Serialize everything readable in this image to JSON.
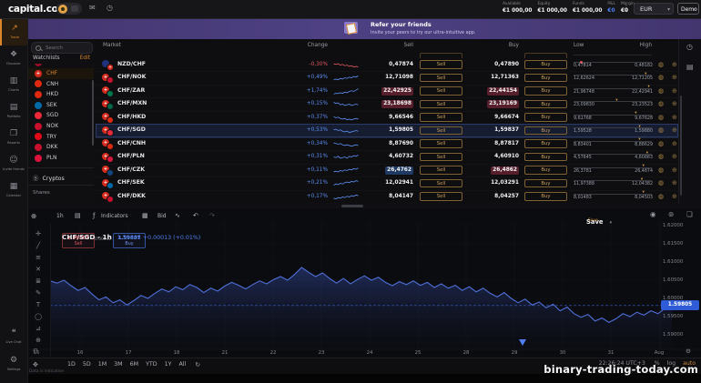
{
  "colors": {
    "accent_orange": "#d9862c",
    "positive_blue": "#5b8def",
    "negative_red": "#e0575d",
    "gold_button": "#caa15c",
    "banner_purple": "#4e4184",
    "chart_line": "#4f6fd8",
    "price_badge_blue": "#2f5cd6",
    "highlight_red_bg": "#571f2b",
    "highlight_blue_bg": "#1f3a63"
  },
  "icon_glyphs": {
    "mail": "✉",
    "history": "◷",
    "dots": "⋮",
    "caret": "▾",
    "clock": "◷",
    "news": "▤",
    "add": "⊕",
    "chart_type": "▤",
    "fx": "ƒ",
    "layout": "▦",
    "line_style": "∿",
    "undo": "↶",
    "redo": "↷",
    "camera": "◉",
    "target": "⊚",
    "fullscreen": "❏",
    "refresh": "↻",
    "pan": "✥",
    "lock": "⊓",
    "gear": "⚙",
    "crypto": "Ⓑ",
    "badge": "◍",
    "alert_add": "⊕"
  },
  "top_bar": {
    "logo": "capital.com",
    "stats": [
      {
        "label": "Available",
        "value": "€1 000,00",
        "accent": false
      },
      {
        "label": "Equity",
        "value": "€1 000,00",
        "accent": false
      },
      {
        "label": "Funds",
        "value": "€1 000,00",
        "accent": false
      },
      {
        "label": "P&L",
        "value": "€0",
        "accent": true
      },
      {
        "label": "Margin",
        "value": "€0",
        "accent": false
      }
    ],
    "currency_select": "EUR",
    "demo_label": "Demo"
  },
  "banner": {
    "title": "Refer your friends",
    "subtitle": "Invite your peers to try our ultra-intuitive app."
  },
  "sidebar": {
    "items": [
      {
        "name": "trade",
        "label": "Trade",
        "glyph": "↗",
        "active": true
      },
      {
        "name": "discover",
        "label": "Discover",
        "glyph": "❖",
        "active": false
      },
      {
        "name": "charts",
        "label": "Charts",
        "glyph": "▥",
        "active": false
      },
      {
        "name": "portfolio",
        "label": "Portfolio",
        "glyph": "▤",
        "active": false
      },
      {
        "name": "reports",
        "label": "Reports",
        "glyph": "❒",
        "active": false
      },
      {
        "name": "invite-friends",
        "label": "Invite friends",
        "glyph": "☺",
        "active": false
      },
      {
        "name": "calendar",
        "label": "Calendar",
        "glyph": "▦",
        "active": false
      }
    ],
    "bottom_items": [
      {
        "name": "live-chat",
        "label": "Live Chat",
        "glyph": "❝"
      },
      {
        "name": "settings",
        "label": "Settings",
        "glyph": "⚙"
      }
    ]
  },
  "watchlist": {
    "search_placeholder": "Search",
    "title": "Watchlists",
    "edit_label": "Edit",
    "items": [
      {
        "code": "CHF",
        "flag": "#d52b1e",
        "emblem": "+",
        "active": true
      },
      {
        "code": "CNH",
        "flag": "#de2910",
        "emblem": "",
        "active": false
      },
      {
        "code": "HKD",
        "flag": "#de2910",
        "emblem": "",
        "active": false
      },
      {
        "code": "SEK",
        "flag": "#006aa7",
        "emblem": "",
        "active": false
      },
      {
        "code": "SGD",
        "flag": "#ed2939",
        "emblem": "",
        "active": false
      },
      {
        "code": "NOK",
        "flag": "#c8102e",
        "emblem": "",
        "active": false
      },
      {
        "code": "TRY",
        "flag": "#e30a17",
        "emblem": "",
        "active": false
      },
      {
        "code": "DKK",
        "flag": "#c8102e",
        "emblem": "",
        "active": false
      },
      {
        "code": "PLN",
        "flag": "#dc143c",
        "emblem": "",
        "active": false
      }
    ],
    "sections": [
      {
        "label": "Cryptos"
      },
      {
        "label": "Shares"
      }
    ]
  },
  "market_table": {
    "headers": [
      "Market",
      "Change",
      "Sell",
      "Buy",
      "Low",
      "High"
    ],
    "sell_label": "Sell",
    "buy_label": "Buy",
    "rows": [
      {
        "name": "NZD/CHF",
        "flag1": "#22317c",
        "emblem1": "",
        "flag2": "#d52b1e",
        "emblem2": "+",
        "change": "-0,30%",
        "dir": "down",
        "spark": [
          7,
          6,
          7,
          5,
          6,
          4,
          5,
          3,
          4,
          2,
          3,
          2
        ],
        "spark_color": "#e0575d",
        "sell": "0,47874",
        "buy": "0,47890",
        "low": "0,47814",
        "high": "0,48182",
        "sell_hl": "",
        "buy_hl": "",
        "marker": "dot",
        "marker_pos": 0.08,
        "marker_color": "#e0575d",
        "selected": false
      },
      {
        "name": "CHF/NOK",
        "flag1": "#d52b1e",
        "emblem1": "+",
        "flag2": "#c8102e",
        "emblem2": "",
        "change": "+0,49%",
        "dir": "up",
        "spark": [
          2,
          3,
          2,
          4,
          3,
          5,
          4,
          6,
          5,
          7,
          6,
          8
        ],
        "spark_color": "#5b8def",
        "sell": "12,71098",
        "buy": "12,71363",
        "low": "12,62624",
        "high": "12,71205",
        "sell_hl": "",
        "buy_hl": "",
        "marker": "caret",
        "marker_pos": 0.93,
        "marker_color": "#d9a348",
        "selected": false
      },
      {
        "name": "CHF/ZAR",
        "flag1": "#d52b1e",
        "emblem1": "+",
        "flag2": "#007a4d",
        "emblem2": "",
        "change": "+1,74%",
        "dir": "up",
        "spark": [
          1,
          2,
          2,
          3,
          2,
          4,
          3,
          5,
          6,
          5,
          7,
          9
        ],
        "spark_color": "#5b8def",
        "sell": "22,42925",
        "buy": "22,44154",
        "low": "21,96748",
        "high": "22,42941",
        "sell_hl": "red",
        "buy_hl": "red",
        "marker": "caret",
        "marker_pos": 0.97,
        "marker_color": "#d9a348",
        "selected": false
      },
      {
        "name": "CHF/MXN",
        "flag1": "#d52b1e",
        "emblem1": "+",
        "flag2": "#006847",
        "emblem2": "",
        "change": "+0,15%",
        "dir": "up",
        "spark": [
          8,
          6,
          7,
          4,
          5,
          3,
          4,
          5,
          3,
          4,
          5,
          4
        ],
        "spark_color": "#5b8def",
        "sell": "23,18698",
        "buy": "23,19169",
        "low": "23,09830",
        "high": "23,23523",
        "sell_hl": "red",
        "buy_hl": "red",
        "marker": "caret",
        "marker_pos": 0.55,
        "marker_color": "#d9a348",
        "selected": false
      },
      {
        "name": "CHF/HKD",
        "flag1": "#d52b1e",
        "emblem1": "+",
        "flag2": "#de2910",
        "emblem2": "",
        "change": "+0,37%",
        "dir": "up",
        "spark": [
          7,
          5,
          6,
          4,
          3,
          4,
          2,
          3,
          2,
          3,
          4,
          3
        ],
        "spark_color": "#5b8def",
        "sell": "9,66546",
        "buy": "9,66674",
        "low": "9,61768",
        "high": "9,67628",
        "sell_hl": "",
        "buy_hl": "",
        "marker": "caret",
        "marker_pos": 0.8,
        "marker_color": "#d9a348",
        "selected": false
      },
      {
        "name": "CHF/SGD",
        "flag1": "#d52b1e",
        "emblem1": "+",
        "flag2": "#ed2939",
        "emblem2": "",
        "change": "+0,53%",
        "dir": "up",
        "spark": [
          6,
          7,
          5,
          6,
          4,
          3,
          4,
          2,
          3,
          4,
          5,
          4
        ],
        "spark_color": "#5b8def",
        "sell": "1,59805",
        "buy": "1,59837",
        "low": "1,59528",
        "high": "1,59880",
        "sell_hl": "",
        "buy_hl": "",
        "marker": "caret",
        "marker_pos": 0.85,
        "marker_color": "#d9a348",
        "selected": true
      },
      {
        "name": "CHF/CNH",
        "flag1": "#d52b1e",
        "emblem1": "+",
        "flag2": "#de2910",
        "emblem2": "",
        "change": "+0,34%",
        "dir": "up",
        "spark": [
          7,
          6,
          5,
          6,
          4,
          3,
          4,
          3,
          2,
          3,
          4,
          3
        ],
        "spark_color": "#5b8def",
        "sell": "8,87690",
        "buy": "8,87817",
        "low": "8,83401",
        "high": "8,88629",
        "sell_hl": "",
        "buy_hl": "",
        "marker": "caret",
        "marker_pos": 0.85,
        "marker_color": "#d9a348",
        "selected": false
      },
      {
        "name": "CHF/PLN",
        "flag1": "#d52b1e",
        "emblem1": "+",
        "flag2": "#dc143c",
        "emblem2": "",
        "change": "+0,31%",
        "dir": "up",
        "spark": [
          5,
          4,
          6,
          3,
          4,
          5,
          3,
          6,
          5,
          7,
          6,
          8
        ],
        "spark_color": "#5b8def",
        "sell": "4,60732",
        "buy": "4,60910",
        "low": "4,57645",
        "high": "4,60883",
        "sell_hl": "",
        "buy_hl": "",
        "marker": "caret",
        "marker_pos": 0.95,
        "marker_color": "#d9a348",
        "selected": false
      },
      {
        "name": "CHF/CZK",
        "flag1": "#d52b1e",
        "emblem1": "+",
        "flag2": "#11457e",
        "emblem2": "",
        "change": "+0,11%",
        "dir": "up",
        "spark": [
          3,
          4,
          3,
          5,
          4,
          6,
          5,
          7,
          6,
          8,
          7,
          9
        ],
        "spark_color": "#5b8def",
        "sell": "26,4762",
        "buy": "26,4862",
        "low": "26,3781",
        "high": "26,4874",
        "sell_hl": "blue",
        "buy_hl": "red",
        "marker": "caret",
        "marker_pos": 0.9,
        "marker_color": "#d9a348",
        "selected": false
      },
      {
        "name": "CHF/SEK",
        "flag1": "#d52b1e",
        "emblem1": "+",
        "flag2": "#006aa7",
        "emblem2": "",
        "change": "+0,21%",
        "dir": "up",
        "spark": [
          2,
          4,
          3,
          5,
          4,
          6,
          7,
          6,
          8,
          7,
          9,
          8
        ],
        "spark_color": "#5b8def",
        "sell": "12,02941",
        "buy": "12,03291",
        "low": "11,97388",
        "high": "12,04382",
        "sell_hl": "",
        "buy_hl": "",
        "marker": "caret",
        "marker_pos": 0.88,
        "marker_color": "#d9a348",
        "selected": false
      },
      {
        "name": "CHF/DKK",
        "flag1": "#d52b1e",
        "emblem1": "+",
        "flag2": "#c8102e",
        "emblem2": "",
        "change": "+0,17%",
        "dir": "up",
        "spark": [
          3,
          2,
          4,
          3,
          5,
          4,
          6,
          5,
          7,
          6,
          8,
          7
        ],
        "spark_color": "#5b8def",
        "sell": "8,04147",
        "buy": "8,04257",
        "low": "8,01483",
        "high": "8,04503",
        "sell_hl": "",
        "buy_hl": "",
        "marker": "caret",
        "marker_pos": 0.9,
        "marker_color": "#d9a348",
        "selected": false
      }
    ]
  },
  "chart": {
    "toolbar": {
      "timeframe": "1h",
      "indicators_label": "Indicators",
      "bid_label": "Bid",
      "save_label": "Save",
      "save_sub": "Save"
    },
    "title": "CHF/SGD - 1h",
    "quote": "1.59805 +0.00013 (+0.01%)",
    "sell_chip": {
      "price": "1.59805",
      "label": "Sell"
    },
    "buy_chip": {
      "price": "1.59837",
      "label": "Buy"
    },
    "spread": "0.00032",
    "draw_tools": [
      {
        "name": "crosshair",
        "glyph": "✛"
      },
      {
        "name": "trend-line",
        "glyph": "╱"
      },
      {
        "name": "channels",
        "glyph": "≡"
      },
      {
        "name": "pattern",
        "glyph": "✕"
      },
      {
        "name": "fibonacci",
        "glyph": "≣"
      },
      {
        "name": "brush",
        "glyph": "✎"
      },
      {
        "name": "text",
        "glyph": "T"
      },
      {
        "name": "shapes",
        "glyph": "◯"
      },
      {
        "name": "measure",
        "glyph": "⊿"
      },
      {
        "name": "zoom-in",
        "glyph": "⊕"
      }
    ],
    "timeframes": [
      "1D",
      "5D",
      "1M",
      "3M",
      "6M",
      "YTD",
      "1Y",
      "All"
    ],
    "footer": {
      "clock": "22:26:24 UTC+3",
      "percent": "%",
      "log_label": "log",
      "auto_label": "auto",
      "note": "Data is indicative"
    }
  },
  "chart_data": {
    "type": "area",
    "title": "CHF/SGD - 1h",
    "xlabel": "",
    "ylabel": "",
    "x_labels": [
      "15",
      "16",
      "17",
      "18",
      "21",
      "22",
      "23",
      "24",
      "25",
      "28",
      "29",
      "30",
      "31",
      "Aug"
    ],
    "y_ticks": [
      1.62,
      1.615,
      1.61,
      1.605,
      1.6,
      1.595,
      1.59
    ],
    "y_tick_labels": [
      "1.62000",
      "1.61500",
      "1.61000",
      "1.60500",
      "1.60000",
      "1.59500",
      "1.59000"
    ],
    "ylim": [
      1.5856,
      1.622
    ],
    "grid": true,
    "legend_position": "none",
    "current_price": 1.59805,
    "current_price_label": "1.59805",
    "series": [
      {
        "name": "CHF/SGD",
        "values": [
          1.6048,
          1.6042,
          1.605,
          1.6035,
          1.6022,
          1.603,
          1.6012,
          1.5996,
          1.6004,
          1.5988,
          1.5996,
          1.5982,
          1.5994,
          1.6008,
          1.6,
          1.6014,
          1.6026,
          1.6018,
          1.6032,
          1.6024,
          1.6038,
          1.603,
          1.6016,
          1.6028,
          1.602,
          1.6034,
          1.6044,
          1.6036,
          1.6026,
          1.6038,
          1.6048,
          1.604,
          1.6052,
          1.606,
          1.605,
          1.6066,
          1.6085,
          1.6072,
          1.606,
          1.607,
          1.6055,
          1.6042,
          1.6055,
          1.604,
          1.6052,
          1.6062,
          1.605,
          1.6058,
          1.6044,
          1.6035,
          1.6046,
          1.6038,
          1.6048,
          1.6036,
          1.6044,
          1.603,
          1.604,
          1.6028,
          1.6036,
          1.6022,
          1.6032,
          1.6018,
          1.6028,
          1.6014,
          1.6004,
          1.6016,
          1.6,
          1.5988,
          1.5998,
          1.5982,
          1.599,
          1.5974,
          1.5984,
          1.5966,
          1.5976,
          1.5958,
          1.5948,
          1.5956,
          1.5938,
          1.5946,
          1.5934,
          1.5944,
          1.5958,
          1.595,
          1.5962,
          1.5954,
          1.5966,
          1.5958,
          1.5972,
          1.59805
        ]
      }
    ]
  },
  "watermark": "binary-trading-today.com"
}
